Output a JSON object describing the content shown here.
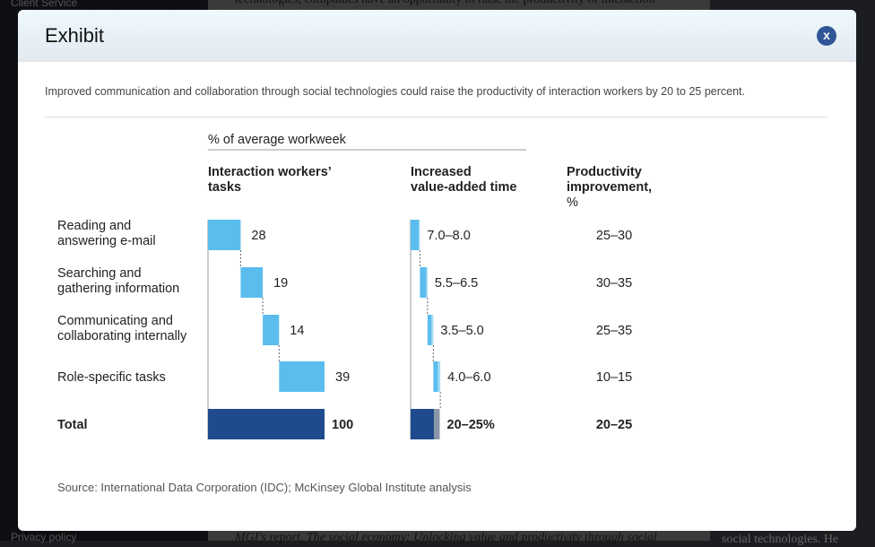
{
  "background": {
    "sidebar_top": "Client Service",
    "sidebar_bottom": "Privacy policy",
    "text_top": "technologies, companies have an opportunity to raise the productivity of interaction",
    "text_bottom": "MGI's report, The social economy: Unlocking value and productivity through social",
    "text_bottom_right": "social technologies. He"
  },
  "modal": {
    "title": "Exhibit",
    "close_label": "x",
    "subtitle": "Improved communication and collaboration through social technologies could raise the productivity of interaction workers by 20 to 25 percent.",
    "source": "Source: International Data Corporation (IDC); McKinsey Global Institute analysis"
  },
  "colors": {
    "light_bar": "#5bbdee",
    "total_bar": "#1f4a8e",
    "close": "#2f5597"
  },
  "chart_data": {
    "type": "bar",
    "group_label": "% of average workweek",
    "column_headers": [
      "Interaction workers' tasks",
      "Increased value-added time",
      "Productivity improvement, %"
    ],
    "categories": [
      "Reading and answering e-mail",
      "Searching and gathering information",
      "Communicating and collaborating internally",
      "Role-specific tasks"
    ],
    "total_label": "Total",
    "tasks": [
      28,
      19,
      14,
      39
    ],
    "tasks_total": 100,
    "tasks_total_label": "100",
    "value_added": [
      {
        "low": 7.0,
        "high": 8.0,
        "label": "7.0–8.0"
      },
      {
        "low": 5.5,
        "high": 6.5,
        "label": "5.5–6.5"
      },
      {
        "low": 3.5,
        "high": 5.0,
        "label": "3.5–5.0"
      },
      {
        "low": 4.0,
        "high": 6.0,
        "label": "4.0–6.0"
      }
    ],
    "value_added_total": {
      "low": 20,
      "high": 25,
      "label": "20–25%"
    },
    "productivity": [
      "25–30",
      "30–35",
      "25–35",
      "10–15"
    ],
    "productivity_total": "20–25"
  }
}
